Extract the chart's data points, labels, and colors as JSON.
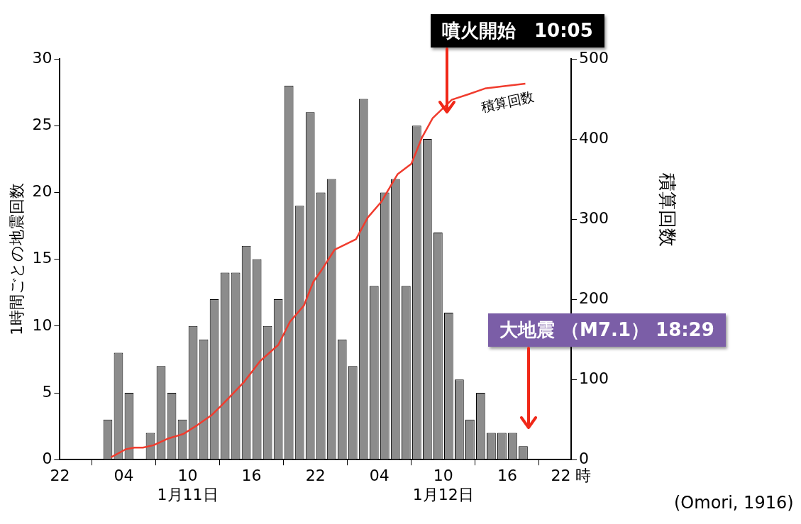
{
  "chart_data": {
    "type": "histogram",
    "ylabel": "1時間ごとの地震回数",
    "y2label": "積算回数",
    "bins": [
      "--01-11T02:00",
      "--01-11T03:00",
      "--01-11T04:00",
      "--01-11T05:00",
      "--01-11T06:00",
      "--01-11T07:00",
      "--01-11T08:00",
      "--01-11T09:00",
      "--01-11T10:00",
      "--01-11T11:00",
      "--01-11T12:00",
      "--01-11T13:00",
      "--01-11T14:00",
      "--01-11T15:00",
      "--01-11T16:00",
      "--01-11T17:00",
      "--01-11T18:00",
      "--01-11T19:00",
      "--01-11T20:00",
      "--01-11T21:00",
      "--01-11T22:00",
      "--01-11T23:00",
      "--01-12T00:00",
      "--01-12T01:00",
      "--01-12T02:00",
      "--01-12T03:00",
      "--01-12T04:00",
      "--01-12T05:00",
      "--01-12T06:00",
      "--01-12T07:00",
      "--01-12T08:00",
      "--01-12T09:00",
      "--01-12T10:00",
      "--01-12T11:00",
      "--01-12T12:00",
      "--01-12T13:00",
      "--01-12T14:00",
      "--01-12T15:00",
      "--01-12T16:00",
      "--01-12T17:00",
      "--01-12T18:00"
    ],
    "values": [
      3,
      8,
      5,
      0,
      2,
      7,
      5,
      3,
      10,
      9,
      12,
      14,
      14,
      16,
      15,
      10,
      12,
      28,
      19,
      26,
      20,
      21,
      9,
      7,
      27,
      13,
      20,
      21,
      13,
      25,
      24,
      17,
      11,
      6,
      3,
      5,
      2,
      2,
      2,
      1
    ],
    "color": "#8c8c8c",
    "series": [
      {
        "type": "line",
        "name": "積算回数",
        "axis": "y2",
        "color": "#f03c2e",
        "x": [
          "--01-11T02:48",
          "--01-11T04:12",
          "--01-11T05:00",
          "--01-11T05:48",
          "--01-11T06:48",
          "--01-11T08:06",
          "--01-11T09:36",
          "--01-11T10:54",
          "--01-11T12:12",
          "--01-11T13:12",
          "--01-11T15:18",
          "--01-11T16:48",
          "--01-11T18:30",
          "--01-11T19:36",
          "--01-11T20:54",
          "--01-11T21:48",
          "--01-11T22:30",
          "--01-11T23:48",
          "--01-12T01:48",
          "--01-12T02:54",
          "--01-12T04:12",
          "--01-12T05:42",
          "--01-12T07:00",
          "--01-12T08:00",
          "--01-12T09:00",
          "--01-12T10:48",
          "--01-12T12:24",
          "--01-12T13:54",
          "--01-12T15:42",
          "--01-12T17:42"
        ],
        "values": [
          3,
          13,
          15,
          15,
          18,
          26,
          32,
          43,
          55,
          68,
          97,
          123,
          143,
          172,
          192,
          222,
          235,
          262,
          275,
          302,
          322,
          356,
          369,
          402,
          426,
          449,
          456,
          463,
          466,
          469
        ]
      }
    ],
    "xlim": [
      "--01-10T22:00",
      "--01-12T22:00"
    ],
    "xticks": [
      {
        "value": "--01-10T22:00",
        "label": "22"
      },
      {
        "value": "--01-11T04:00",
        "label": "04"
      },
      {
        "value": "--01-11T10:00",
        "label": "10\n1月11日"
      },
      {
        "value": "--01-11T16:00",
        "label": "16"
      },
      {
        "value": "--01-11T22:00",
        "label": "22"
      },
      {
        "value": "--01-12T04:00",
        "label": "04"
      },
      {
        "value": "--01-12T10:00",
        "label": "10\n1月12日"
      },
      {
        "value": "--01-12T16:00",
        "label": "16"
      },
      {
        "value": "--01-12T22:00",
        "label": "22 時"
      }
    ],
    "ylim": [
      0,
      30
    ],
    "yticks": [
      0,
      5,
      10,
      15,
      20,
      25,
      30
    ],
    "y2lim": [
      0,
      500
    ],
    "y2ticks": [
      0,
      100,
      200,
      300,
      400,
      500
    ],
    "grid": false,
    "legend": false,
    "annotations": [
      "噴火開始　10:05",
      "大地震 （M7.1） 18:29",
      "(Omori, 1916)"
    ]
  }
}
